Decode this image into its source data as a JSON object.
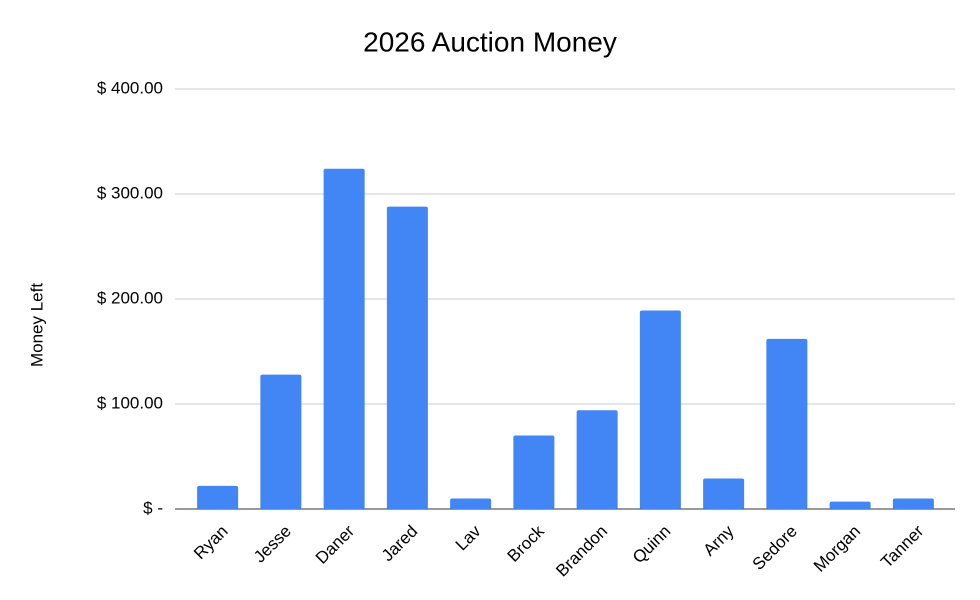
{
  "chart_data": {
    "type": "bar",
    "title": "2026 Auction Money",
    "y_label": "Money Left",
    "categories": [
      "Ryan",
      "Jesse",
      "Daner",
      "Jared",
      "Lav",
      "Brock",
      "Brandon",
      "Quinn",
      "Arny",
      "Sedore",
      "Morgan",
      "Tanner"
    ],
    "values": [
      22,
      128,
      324,
      288,
      10,
      70,
      94,
      189,
      29,
      162,
      7,
      10
    ],
    "color": "#4285f4",
    "ylim": [
      0,
      400
    ],
    "yticks": [
      {
        "value": 0,
        "label": "$ -"
      },
      {
        "value": 100,
        "label": "$ 100.00"
      },
      {
        "value": 200,
        "label": "$ 200.00"
      },
      {
        "value": 300,
        "label": "$ 300.00"
      },
      {
        "value": 400,
        "label": "$ 400.00"
      }
    ],
    "grid": true
  }
}
